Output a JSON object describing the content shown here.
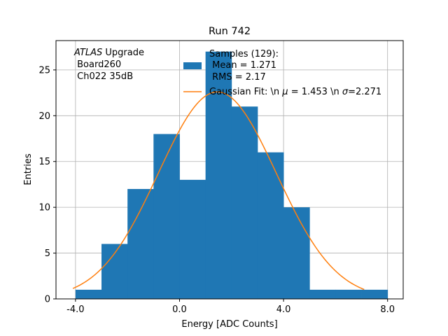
{
  "chart_data": {
    "type": "bar",
    "title": "Run 742",
    "xlabel": "Energy [ADC Counts]",
    "ylabel": "Entries",
    "xlim": [
      -4.75,
      8.6
    ],
    "ylim": [
      0,
      28.2
    ],
    "xticks": [
      -4.0,
      0.0,
      4.0,
      8.0
    ],
    "xtick_labels": [
      "-4.0",
      "0.0",
      "4.0",
      "8.0"
    ],
    "yticks": [
      0,
      5,
      10,
      15,
      20,
      25
    ],
    "ytick_labels": [
      "0",
      "5",
      "10",
      "15",
      "20",
      "25"
    ],
    "grid": true,
    "legend_position": "top-right",
    "histogram": {
      "bin_edges": [
        -4,
        -3,
        -2,
        -1,
        0,
        1,
        2,
        3,
        4,
        5,
        6,
        7,
        8
      ],
      "counts": [
        1,
        6,
        12,
        18,
        13,
        27,
        21,
        16,
        10,
        1,
        1,
        1
      ],
      "color": "#1f77b4"
    },
    "fit": {
      "type": "gaussian",
      "mu": 1.453,
      "sigma": 2.271,
      "amplitude": 22.6,
      "x_range": [
        -4.1,
        7.1
      ],
      "color": "#ff7f0e"
    },
    "annotation": {
      "atlas_word": "ATLAS",
      "atlas_suffix": " Upgrade",
      "line2": " Board260",
      "line3": " Ch022 35dB"
    },
    "legend": {
      "hist_line1": "Samples (129):",
      "hist_line2": " Mean = 1.271",
      "hist_line3": " RMS = 2.17",
      "fit_prefix": "Gaussian Fit: \\n ",
      "fit_mu_symbol": "μ",
      "fit_mid": " = 1.453 \\n ",
      "fit_sigma_symbol": "σ",
      "fit_suffix": "=2.271"
    }
  }
}
